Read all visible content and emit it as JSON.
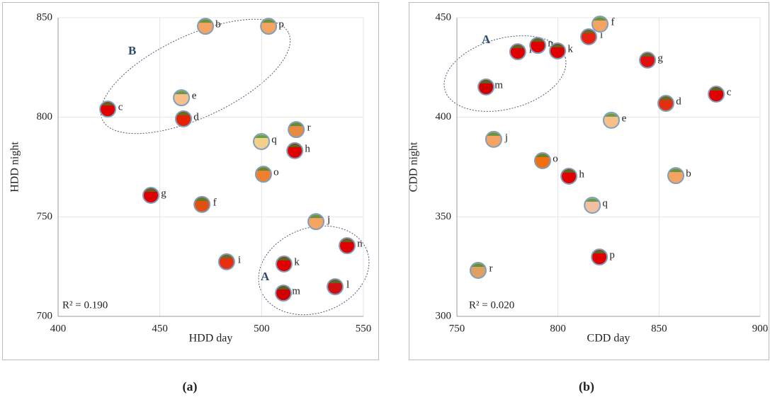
{
  "chart_data": [
    {
      "type": "scatter",
      "caption": "(a)",
      "xlabel": "HDD day",
      "ylabel": "HDD night",
      "xlim": [
        400,
        550
      ],
      "xticks": [
        400,
        450,
        500,
        550
      ],
      "ylim": [
        700,
        850
      ],
      "yticks": [
        700,
        750,
        800,
        850
      ],
      "grid": true,
      "labels": [
        "b",
        "p",
        "c",
        "e",
        "d",
        "q",
        "r",
        "h",
        "o",
        "g",
        "f",
        "j",
        "n",
        "i",
        "k",
        "l",
        "m"
      ],
      "x": [
        472.4,
        503.4,
        424.4,
        460.6,
        461.6,
        499.9,
        517,
        516.3,
        500.9,
        445.6,
        470.7,
        526.7,
        542,
        482.8,
        511,
        536.1,
        510.7
      ],
      "y": [
        845.7,
        845.7,
        804.1,
        809.8,
        799.2,
        787.8,
        793.8,
        783.2,
        771.4,
        760.8,
        756.2,
        747.6,
        735.5,
        727.4,
        726.3,
        714.9,
        711.7
      ],
      "colors": [
        "#f4a460",
        "#f4a460",
        "#e00000",
        "#f7c08a",
        "#e62000",
        "#f2d08a",
        "#e88a40",
        "#e00000",
        "#f08030",
        "#e00000",
        "#e05010",
        "#f4a460",
        "#e00000",
        "#e83010",
        "#e00000",
        "#d01010",
        "#d00000"
      ],
      "annotations": [
        "R² = 0.190",
        "A",
        "B"
      ]
    },
    {
      "type": "scatter",
      "caption": "(b)",
      "xlabel": "CDD day",
      "ylabel": "CDD night",
      "xlim": [
        750,
        900
      ],
      "xticks": [
        750,
        800,
        850,
        900
      ],
      "ylim": [
        300,
        450
      ],
      "yticks": [
        300,
        350,
        400,
        450
      ],
      "grid": true,
      "labels": [
        "l",
        "n",
        "k",
        "i",
        "f",
        "g",
        "m",
        "c",
        "d",
        "e",
        "j",
        "o",
        "h",
        "b",
        "q",
        "p",
        "r"
      ],
      "x": [
        780.1,
        790,
        799.8,
        815.2,
        820.8,
        844.3,
        764.4,
        878.3,
        853.4,
        826.4,
        768.2,
        792.4,
        805.4,
        858.3,
        817,
        820.5,
        760.5
      ],
      "y": [
        432.9,
        436.1,
        433.3,
        440.4,
        446.8,
        428.7,
        415.2,
        411.6,
        407,
        398.5,
        388.9,
        378.2,
        370.4,
        370.7,
        355.8,
        329.8,
        323.1
      ],
      "colors": [
        "#e00000",
        "#e00000",
        "#e00000",
        "#e82010",
        "#f4a460",
        "#e01010",
        "#d00000",
        "#e00000",
        "#e03010",
        "#f7c08a",
        "#f4a460",
        "#f07010",
        "#e00000",
        "#f4a460",
        "#f2c0a0",
        "#e00000",
        "#e0a060"
      ],
      "annotations": [
        "R² = 0.020",
        "A"
      ]
    }
  ]
}
